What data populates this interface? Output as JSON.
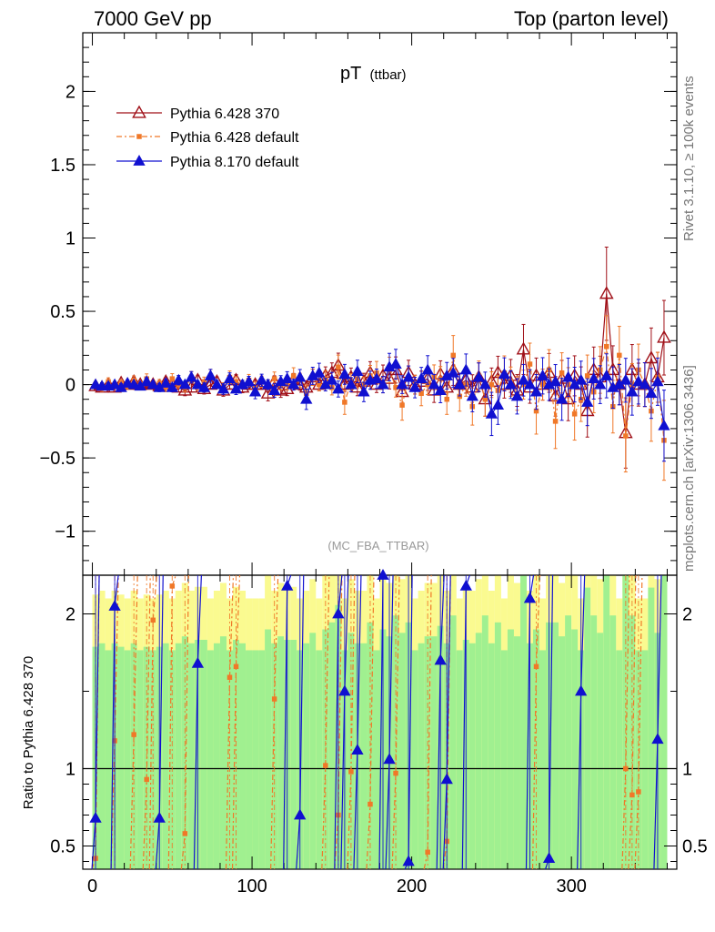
{
  "header": {
    "left": "7000 GeV pp",
    "right": "Top (parton level)"
  },
  "side_labels": {
    "rivet": "Rivet 3.1.10, ≥ 100k events",
    "mcplots": "mcplots.cern.ch [arXiv:1306.3436]"
  },
  "chart_data": [
    {
      "type": "line",
      "title_main": "pT",
      "title_sub": "(ttbar)",
      "watermark": "(MC_FBA_TTBAR)",
      "xlim": [
        -6,
        366
      ],
      "ylim": [
        -1.3,
        2.4
      ],
      "y_ticks": [
        {
          "v": 2,
          "label": "2"
        },
        {
          "v": 1.5,
          "label": "1.5"
        },
        {
          "v": 1,
          "label": "1"
        },
        {
          "v": 0.5,
          "label": "0.5"
        },
        {
          "v": 0,
          "label": "0"
        },
        {
          "v": -0.5,
          "label": "−0.5"
        },
        {
          "v": -1,
          "label": "−1"
        }
      ],
      "legend": [
        {
          "name": "Pythia 6.428 370",
          "color": "#a01018",
          "marker": "triangle-open"
        },
        {
          "name": "Pythia 6.428 default",
          "color": "#f07828",
          "marker": "square"
        },
        {
          "name": "Pythia 8.170 default",
          "color": "#1010d0",
          "marker": "triangle"
        }
      ],
      "x": [
        2,
        6,
        10,
        14,
        18,
        22,
        26,
        30,
        34,
        38,
        42,
        46,
        50,
        54,
        58,
        62,
        66,
        70,
        74,
        78,
        82,
        86,
        90,
        94,
        98,
        102,
        106,
        110,
        114,
        118,
        122,
        126,
        130,
        134,
        138,
        142,
        146,
        150,
        154,
        158,
        162,
        166,
        170,
        174,
        178,
        182,
        186,
        190,
        194,
        198,
        202,
        206,
        210,
        214,
        218,
        222,
        226,
        230,
        234,
        238,
        242,
        246,
        250,
        254,
        258,
        262,
        266,
        270,
        274,
        278,
        282,
        286,
        290,
        294,
        298,
        302,
        306,
        310,
        314,
        318,
        322,
        326,
        330,
        334,
        338,
        342,
        346,
        350,
        354,
        358
      ],
      "series": [
        {
          "name": "Pythia 6.428 370",
          "values": [
            -0.01,
            -0.02,
            0.0,
            -0.02,
            0.01,
            0.0,
            0.02,
            0.0,
            0.01,
            0.0,
            -0.01,
            0.02,
            0.0,
            -0.02,
            -0.04,
            -0.02,
            0.03,
            -0.03,
            0.0,
            0.02,
            -0.04,
            0.0,
            0.03,
            -0.02,
            0.0,
            0.0,
            0.0,
            -0.06,
            0.02,
            -0.04,
            -0.03,
            0.03,
            0.0,
            -0.02,
            0.05,
            0.0,
            0.06,
            0.08,
            0.13,
            0.0,
            0.05,
            -0.02,
            0.02,
            0.08,
            0.0,
            0.06,
            0.04,
            0.1,
            -0.05,
            0.08,
            0.0,
            0.02,
            0.04,
            -0.04,
            0.07,
            -0.02,
            0.1,
            0.0,
            0.03,
            -0.02,
            0.05,
            -0.1,
            0.02,
            0.08,
            0.0,
            0.06,
            -0.04,
            0.24,
            -0.02,
            0.06,
            0.0,
            0.08,
            -0.08,
            0.04,
            -0.1,
            0.06,
            0.0,
            -0.18,
            0.1,
            0.05,
            0.62,
            0.1,
            0.0,
            -0.33,
            0.1,
            0.0,
            0.0,
            0.18,
            0.05,
            0.32
          ]
        },
        {
          "name": "Pythia 6.428 default",
          "values": [
            0.0,
            -0.02,
            0.02,
            0.0,
            0.01,
            -0.01,
            0.03,
            0.0,
            0.04,
            0.0,
            0.01,
            -0.02,
            0.04,
            0.0,
            -0.02,
            0.05,
            -0.01,
            0.02,
            0.06,
            0.0,
            -0.02,
            0.05,
            0.02,
            0.0,
            0.03,
            -0.02,
            0.02,
            0.0,
            0.04,
            0.0,
            0.0,
            0.06,
            0.03,
            -0.06,
            0.05,
            0.0,
            0.04,
            -0.02,
            0.12,
            -0.12,
            0.02,
            0.04,
            0.0,
            0.06,
            0.08,
            0.0,
            0.1,
            -0.02,
            -0.14,
            0.05,
            0.0,
            -0.06,
            0.0,
            0.05,
            0.04,
            -0.1,
            0.2,
            -0.08,
            0.0,
            -0.15,
            0.06,
            -0.1,
            0.0,
            -0.04,
            0.08,
            0.02,
            -0.06,
            0.0,
            0.14,
            -0.18,
            0.0,
            0.1,
            -0.25,
            0.08,
            0.0,
            -0.2,
            -0.1,
            0.06,
            -0.05,
            0.1,
            0.26,
            -0.15,
            0.2,
            -0.35,
            0.0,
            0.1,
            0.0,
            -0.18,
            0.05,
            -0.38
          ]
        },
        {
          "name": "Pythia 8.170 default",
          "values": [
            0.0,
            -0.01,
            -0.01,
            0.0,
            -0.02,
            0.01,
            0.0,
            -0.01,
            0.02,
            0.0,
            -0.02,
            0.01,
            -0.02,
            0.03,
            0.0,
            0.05,
            0.0,
            -0.02,
            0.06,
            0.0,
            -0.03,
            0.04,
            -0.03,
            0.0,
            0.02,
            -0.05,
            0.03,
            0.0,
            -0.04,
            0.02,
            0.04,
            0.0,
            0.05,
            -0.1,
            0.06,
            0.08,
            0.0,
            0.03,
            -0.03,
            0.07,
            0.0,
            0.09,
            -0.05,
            0.03,
            0.04,
            0.0,
            0.12,
            0.14,
            0.0,
            0.05,
            -0.02,
            0.04,
            0.1,
            0.0,
            -0.04,
            0.06,
            0.08,
            0.0,
            0.1,
            -0.08,
            0.05,
            0.0,
            -0.2,
            -0.14,
            0.07,
            0.0,
            -0.08,
            0.03,
            0.0,
            -0.05,
            0.06,
            0.0,
            0.02,
            -0.1,
            0.05,
            0.0,
            0.03,
            -0.12,
            0.04,
            0.0,
            0.06,
            -0.02,
            0.0,
            0.03,
            -0.05,
            0.02,
            0.0,
            -0.06,
            0.02,
            -0.28
          ]
        }
      ]
    },
    {
      "type": "line",
      "ylabel": "Ratio to Pythia 6.428 370",
      "xlim": [
        -6,
        366
      ],
      "ylim": [
        0.35,
        2.25
      ],
      "reference_line": 1,
      "y_ticks": [
        {
          "v": 2,
          "label": "2"
        },
        {
          "v": 1,
          "label": "1"
        },
        {
          "v": 0.5,
          "label": "0.5"
        }
      ],
      "x_ticks": [
        {
          "v": 0,
          "label": "0"
        },
        {
          "v": 100,
          "label": "100"
        },
        {
          "v": 200,
          "label": "200"
        },
        {
          "v": 300,
          "label": "300"
        }
      ],
      "band_colors": {
        "inner": "#a0f090",
        "outer": "#fafa90"
      },
      "series": [
        {
          "name": "Pythia 6.428 default",
          "color": "#f07828",
          "points": [
            [
              2,
              0.42
            ],
            [
              14,
              1.18
            ],
            [
              26,
              1.22
            ],
            [
              34,
              0.93
            ],
            [
              38,
              1.96
            ],
            [
              50,
              2.18
            ],
            [
              58,
              0.58
            ],
            [
              86,
              1.59
            ],
            [
              90,
              1.66
            ],
            [
              114,
              1.45
            ],
            [
              146,
              1.02
            ],
            [
              154,
              0.7
            ],
            [
              162,
              0.98
            ],
            [
              174,
              0.77
            ],
            [
              190,
              0.97
            ],
            [
              210,
              0.46
            ],
            [
              222,
              0.53
            ],
            [
              278,
              1.66
            ],
            [
              334,
              1.0
            ],
            [
              338,
              0.83
            ],
            [
              342,
              0.85
            ]
          ]
        },
        {
          "name": "Pythia 8.170 default",
          "color": "#1010d0",
          "points": [
            [
              2,
              0.68
            ],
            [
              14,
              2.05
            ],
            [
              42,
              0.68
            ],
            [
              66,
              1.68
            ],
            [
              122,
              2.18
            ],
            [
              130,
              0.7
            ],
            [
              154,
              2.0
            ],
            [
              158,
              1.5
            ],
            [
              166,
              1.12
            ],
            [
              182,
              2.25
            ],
            [
              186,
              1.06
            ],
            [
              198,
              0.4
            ],
            [
              218,
              1.7
            ],
            [
              222,
              0.93
            ],
            [
              234,
              2.18
            ],
            [
              274,
              2.1
            ],
            [
              286,
              0.42
            ],
            [
              306,
              1.5
            ],
            [
              354,
              1.19
            ]
          ]
        }
      ]
    }
  ]
}
